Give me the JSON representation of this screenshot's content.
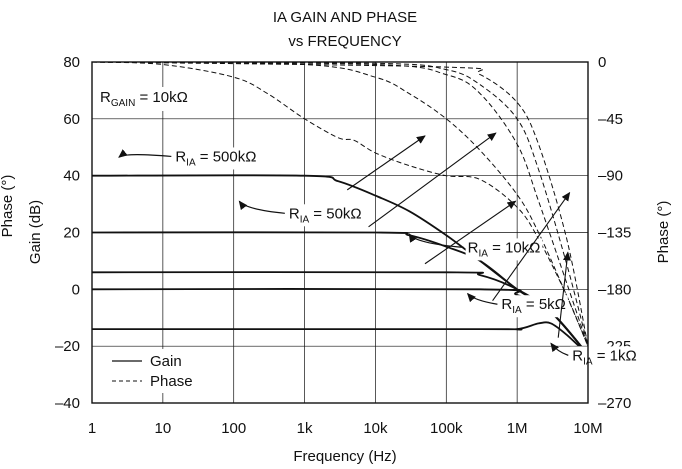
{
  "chart_data": {
    "type": "line",
    "title": "IA GAIN AND PHASE",
    "subtitle": "vs FREQUENCY",
    "xlabel": "Frequency (Hz)",
    "ylabel_left": "Gain (dB)",
    "ylabel_left_clipped": "Phase (°)",
    "ylabel_right": "Phase (°)",
    "x_scale": "log",
    "xlim": [
      1,
      10000000
    ],
    "ylim_left": [
      -40,
      80
    ],
    "ylim_right": [
      -270,
      0
    ],
    "grid": true,
    "x_ticks": [
      {
        "value": 1,
        "label": "1"
      },
      {
        "value": 10,
        "label": "10"
      },
      {
        "value": 100,
        "label": "100"
      },
      {
        "value": 1000,
        "label": "1k"
      },
      {
        "value": 10000,
        "label": "10k"
      },
      {
        "value": 100000,
        "label": "100k"
      },
      {
        "value": 1000000,
        "label": "1M"
      },
      {
        "value": 10000000,
        "label": "10M"
      }
    ],
    "y_ticks_left": [
      {
        "value": 80,
        "label": "80"
      },
      {
        "value": 60,
        "label": "60"
      },
      {
        "value": 40,
        "label": "40"
      },
      {
        "value": 20,
        "label": "20"
      },
      {
        "value": 0,
        "label": "0"
      },
      {
        "value": -20,
        "label": "–20"
      },
      {
        "value": -40,
        "label": "–40"
      }
    ],
    "y_ticks_right": [
      {
        "value": 0,
        "label": "0"
      },
      {
        "value": -45,
        "label": "–45"
      },
      {
        "value": -90,
        "label": "–90"
      },
      {
        "value": -135,
        "label": "–135"
      },
      {
        "value": -180,
        "label": "–180"
      },
      {
        "value": -225,
        "label": "–225"
      },
      {
        "value": -270,
        "label": "–270"
      }
    ],
    "annotation": {
      "main": "R",
      "sub": "GAIN",
      "rest": " = 10kΩ"
    },
    "legend": {
      "placement": "bottom-left",
      "entries": [
        {
          "style": "solid",
          "label": "Gain"
        },
        {
          "style": "dashed",
          "label": "Phase"
        }
      ]
    },
    "series": [
      {
        "group": "R_IA = 500kΩ",
        "gain": {
          "axis": "left",
          "x": [
            1,
            1000,
            3000,
            10000,
            30000,
            100000,
            300000,
            1000000,
            3000000,
            10000000
          ],
          "y": [
            40,
            40,
            38,
            33,
            27.5,
            19,
            10,
            0,
            -8,
            -23
          ]
        },
        "phase": {
          "axis": "right",
          "x": [
            1,
            10,
            100,
            300,
            1000,
            3000,
            5000,
            10000,
            30000,
            100000,
            300000,
            1000000,
            2000000,
            5000000,
            10000000
          ],
          "y": [
            0,
            -2,
            -12,
            -25,
            -45,
            -60,
            -62,
            -72,
            -82,
            -90,
            -93,
            -115,
            -140,
            -185,
            -225
          ]
        }
      },
      {
        "group": "R_IA = 50kΩ",
        "gain": {
          "axis": "left",
          "x": [
            1,
            10000,
            30000,
            100000,
            300000,
            1000000,
            3000000,
            10000000
          ],
          "y": [
            20,
            20,
            19,
            15,
            10,
            0,
            -8,
            -23
          ]
        },
        "phase": {
          "axis": "right",
          "x": [
            1,
            1000,
            10000,
            30000,
            100000,
            300000,
            1000000,
            2000000,
            5000000,
            10000000
          ],
          "y": [
            0,
            -2,
            -12,
            -25,
            -45,
            -70,
            -105,
            -135,
            -185,
            -225
          ]
        }
      },
      {
        "group": "R_IA = 10kΩ",
        "gain": {
          "axis": "left",
          "x": [
            1,
            100000,
            300000,
            1000000,
            3000000,
            10000000
          ],
          "y": [
            6,
            6,
            5,
            0,
            -8,
            -23
          ]
        },
        "phase": {
          "axis": "right",
          "x": [
            1,
            10000,
            100000,
            300000,
            1000000,
            2000000,
            5000000,
            10000000
          ],
          "y": [
            0,
            -2,
            -10,
            -25,
            -65,
            -110,
            -175,
            -225
          ]
        }
      },
      {
        "group": "R_IA = 5kΩ",
        "gain": {
          "axis": "left",
          "x": [
            1,
            300000,
            1000000,
            3000000,
            10000000
          ],
          "y": [
            0,
            0,
            -2,
            -8,
            -23
          ]
        },
        "phase": {
          "axis": "right",
          "x": [
            1,
            10000,
            100000,
            300000,
            1000000,
            2000000,
            5000000,
            10000000
          ],
          "y": [
            0,
            -1,
            -6,
            -18,
            -45,
            -85,
            -160,
            -225
          ]
        }
      },
      {
        "group": "R_IA = 1kΩ",
        "gain": {
          "axis": "left",
          "x": [
            1,
            300000,
            1000000,
            2000000,
            3000000,
            5000000,
            10000000
          ],
          "y": [
            -14,
            -14,
            -14,
            -12,
            -12,
            -16,
            -23
          ]
        },
        "phase": {
          "axis": "right",
          "x": [
            1,
            100000,
            300000,
            1000000,
            2000000,
            5000000,
            10000000
          ],
          "y": [
            0,
            -4,
            -10,
            -32,
            -65,
            -140,
            -225
          ]
        }
      }
    ],
    "labels": [
      {
        "main": "R",
        "sub": "IA",
        "rest": " = 500kΩ",
        "at": [
          2.4,
          46.5
        ],
        "text_at": [
          15,
          45
        ],
        "arrow_from": [
          4000,
          35
        ],
        "arrow_to": [
          50000,
          54
        ]
      },
      {
        "main": "R",
        "sub": "IA",
        "rest": " = 50kΩ",
        "at": [
          120,
          31
        ],
        "text_at": [
          600,
          25
        ],
        "arrow_from": [
          8000,
          22
        ],
        "arrow_to": [
          500000,
          55
        ]
      },
      {
        "main": "R",
        "sub": "IA",
        "rest": " = 10kΩ",
        "at": [
          30000,
          19.5
        ],
        "text_at": [
          200000,
          13
        ],
        "arrow_from": [
          50000,
          9
        ],
        "arrow_to": [
          950000,
          31
        ]
      },
      {
        "main": "R",
        "sub": "IA",
        "rest": " = 5kΩ",
        "at": [
          200000,
          -1.5
        ],
        "text_at": [
          600000,
          -7
        ],
        "arrow_from": [
          450000,
          -4
        ],
        "arrow_to": [
          5500000,
          34
        ]
      },
      {
        "main": "R",
        "sub": "IA",
        "rest": " = 1kΩ",
        "at": [
          3000000,
          -19
        ],
        "text_at": [
          6000000,
          -25
        ],
        "arrow_from": [
          3800000,
          -17
        ],
        "arrow_to": [
          5200000,
          13
        ]
      }
    ]
  }
}
